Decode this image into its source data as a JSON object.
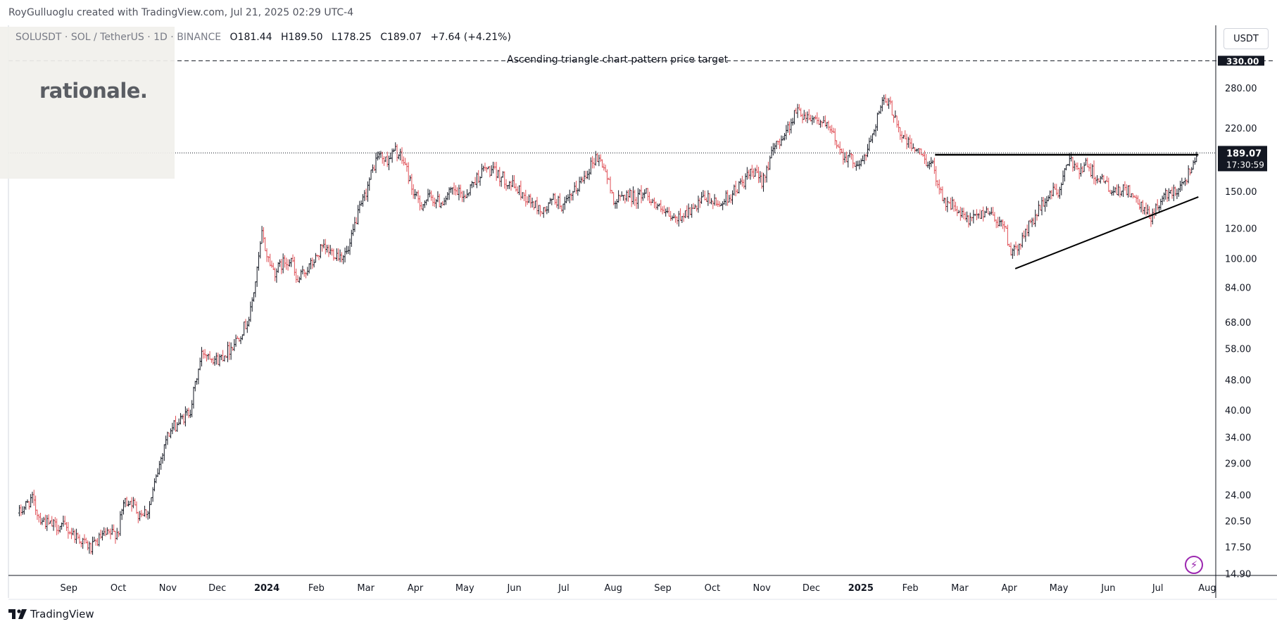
{
  "header": {
    "attribution": "RoyGulluoglu created with TradingView.com, Jul 21, 2025 02:29 UTC-4",
    "symbol": "SOLUSDT · SOL / TetherUS · 1D · BINANCE",
    "open": "O181.44",
    "high": "H189.50",
    "low": "L178.25",
    "close": "C189.07",
    "change": "+7.64 (+4.21%)"
  },
  "logo": {
    "text": "rationale."
  },
  "currency_button": "USDT",
  "footer": {
    "brand": "TradingView"
  },
  "icons": {
    "alert": "lightning-icon",
    "brand": "tradingview-logo-icon"
  },
  "colors": {
    "up": "#131722",
    "down": "#e04f56",
    "last_price_bg": "#131722",
    "bolt": "#9c27b0"
  },
  "chart_data": {
    "type": "candlestick",
    "title": "SOLUSDT · SOL / TetherUS · 1D · BINANCE",
    "scale": "log",
    "ylim": [
      13.5,
      360
    ],
    "y_ticks": [
      {
        "value": 280,
        "label": "280.00"
      },
      {
        "value": 220,
        "label": "220.00"
      },
      {
        "value": 150,
        "label": "150.00"
      },
      {
        "value": 120,
        "label": "120.00"
      },
      {
        "value": 100,
        "label": "100.00"
      },
      {
        "value": 84,
        "label": "84.00"
      },
      {
        "value": 68,
        "label": "68.00"
      },
      {
        "value": 58,
        "label": "58.00"
      },
      {
        "value": 48,
        "label": "48.00"
      },
      {
        "value": 40,
        "label": "40.00"
      },
      {
        "value": 34,
        "label": "34.00"
      },
      {
        "value": 29,
        "label": "29.00"
      },
      {
        "value": 24,
        "label": "24.00"
      },
      {
        "value": 20.5,
        "label": "20.50"
      },
      {
        "value": 17.5,
        "label": "17.50"
      },
      {
        "value": 14.9,
        "label": "14.90"
      }
    ],
    "x_ticks": [
      {
        "t": 0.5,
        "label": "Sep",
        "year": false
      },
      {
        "t": 1.5,
        "label": "Oct",
        "year": false
      },
      {
        "t": 2.5,
        "label": "Nov",
        "year": false
      },
      {
        "t": 3.5,
        "label": "Dec",
        "year": false
      },
      {
        "t": 4.5,
        "label": "2024",
        "year": true
      },
      {
        "t": 5.5,
        "label": "Feb",
        "year": false
      },
      {
        "t": 6.5,
        "label": "Mar",
        "year": false
      },
      {
        "t": 7.5,
        "label": "Apr",
        "year": false
      },
      {
        "t": 8.5,
        "label": "May",
        "year": false
      },
      {
        "t": 9.5,
        "label": "Jun",
        "year": false
      },
      {
        "t": 10.5,
        "label": "Jul",
        "year": false
      },
      {
        "t": 11.5,
        "label": "Aug",
        "year": false
      },
      {
        "t": 12.5,
        "label": "Sep",
        "year": false
      },
      {
        "t": 13.5,
        "label": "Oct",
        "year": false
      },
      {
        "t": 14.5,
        "label": "Nov",
        "year": false
      },
      {
        "t": 15.5,
        "label": "Dec",
        "year": false
      },
      {
        "t": 16.5,
        "label": "2025",
        "year": true
      },
      {
        "t": 17.5,
        "label": "Feb",
        "year": false
      },
      {
        "t": 18.5,
        "label": "Mar",
        "year": false
      },
      {
        "t": 19.5,
        "label": "Apr",
        "year": false
      },
      {
        "t": 20.5,
        "label": "May",
        "year": false
      },
      {
        "t": 21.5,
        "label": "Jun",
        "year": false
      },
      {
        "t": 22.5,
        "label": "Jul",
        "year": false
      },
      {
        "t": 23.5,
        "label": "Aug",
        "year": false
      }
    ],
    "last_price": {
      "value": 189.07,
      "label": "189.07",
      "countdown": "17:30:59"
    },
    "target": {
      "value": 330,
      "label": "330.00",
      "annotation": "Ascending triangle chart pattern price target"
    },
    "resistance": {
      "t_start": 18.0,
      "t_end": 23.32,
      "value": 187
    },
    "support": {
      "t_start": 19.62,
      "v_start": 94,
      "t_end": 23.32,
      "v_end": 145
    },
    "price_path": [
      [
        -0.5,
        21.5
      ],
      [
        -0.25,
        23.5
      ],
      [
        -0.1,
        21
      ],
      [
        0.1,
        20
      ],
      [
        0.4,
        19.8
      ],
      [
        0.7,
        18.5
      ],
      [
        0.95,
        17.3
      ],
      [
        1.15,
        18.6
      ],
      [
        1.5,
        19.2
      ],
      [
        1.6,
        22.8
      ],
      [
        1.75,
        23.3
      ],
      [
        1.9,
        21.5
      ],
      [
        2.1,
        21.8
      ],
      [
        2.25,
        26
      ],
      [
        2.45,
        33.5
      ],
      [
        2.6,
        36
      ],
      [
        2.8,
        38
      ],
      [
        2.95,
        40
      ],
      [
        3.1,
        50
      ],
      [
        3.2,
        57
      ],
      [
        3.35,
        56
      ],
      [
        3.5,
        54
      ],
      [
        3.75,
        58
      ],
      [
        3.95,
        63
      ],
      [
        4.15,
        70
      ],
      [
        4.3,
        92
      ],
      [
        4.4,
        116
      ],
      [
        4.5,
        102
      ],
      [
        4.65,
        92
      ],
      [
        4.85,
        98
      ],
      [
        5.0,
        100
      ],
      [
        5.1,
        86
      ],
      [
        5.25,
        92
      ],
      [
        5.45,
        98
      ],
      [
        5.6,
        106
      ],
      [
        5.8,
        104
      ],
      [
        6.0,
        102
      ],
      [
        6.15,
        104
      ],
      [
        6.3,
        126
      ],
      [
        6.45,
        142
      ],
      [
        6.6,
        165
      ],
      [
        6.75,
        188
      ],
      [
        6.9,
        180
      ],
      [
        7.1,
        192
      ],
      [
        7.3,
        176
      ],
      [
        7.45,
        150
      ],
      [
        7.6,
        138
      ],
      [
        7.8,
        145
      ],
      [
        8.0,
        140
      ],
      [
        8.25,
        150
      ],
      [
        8.5,
        146
      ],
      [
        8.7,
        160
      ],
      [
        8.9,
        172
      ],
      [
        9.1,
        168
      ],
      [
        9.35,
        160
      ],
      [
        9.6,
        150
      ],
      [
        9.85,
        140
      ],
      [
        10.1,
        132
      ],
      [
        10.3,
        144
      ],
      [
        10.5,
        136
      ],
      [
        10.75,
        152
      ],
      [
        10.95,
        168
      ],
      [
        11.15,
        185
      ],
      [
        11.3,
        176
      ],
      [
        11.45,
        150
      ],
      [
        11.55,
        140
      ],
      [
        11.75,
        148
      ],
      [
        11.95,
        144
      ],
      [
        12.15,
        150
      ],
      [
        12.35,
        138
      ],
      [
        12.55,
        130
      ],
      [
        12.75,
        126
      ],
      [
        12.95,
        132
      ],
      [
        13.15,
        134
      ],
      [
        13.35,
        145
      ],
      [
        13.6,
        138
      ],
      [
        13.85,
        146
      ],
      [
        14.05,
        155
      ],
      [
        14.3,
        168
      ],
      [
        14.5,
        160
      ],
      [
        14.65,
        180
      ],
      [
        14.8,
        200
      ],
      [
        15.0,
        216
      ],
      [
        15.2,
        245
      ],
      [
        15.35,
        238
      ],
      [
        15.55,
        235
      ],
      [
        15.75,
        225
      ],
      [
        15.95,
        210
      ],
      [
        16.1,
        190
      ],
      [
        16.3,
        182
      ],
      [
        16.5,
        176
      ],
      [
        16.65,
        195
      ],
      [
        16.85,
        240
      ],
      [
        16.95,
        258
      ],
      [
        17.1,
        250
      ],
      [
        17.2,
        236
      ],
      [
        17.3,
        212
      ],
      [
        17.45,
        200
      ],
      [
        17.6,
        194
      ],
      [
        17.8,
        182
      ],
      [
        17.95,
        175
      ],
      [
        18.05,
        160
      ],
      [
        18.2,
        140
      ],
      [
        18.35,
        138
      ],
      [
        18.5,
        130
      ],
      [
        18.7,
        125
      ],
      [
        18.9,
        130
      ],
      [
        19.05,
        135
      ],
      [
        19.25,
        126
      ],
      [
        19.4,
        122
      ],
      [
        19.55,
        102
      ],
      [
        19.65,
        106
      ],
      [
        19.8,
        115
      ],
      [
        19.95,
        125
      ],
      [
        20.15,
        137
      ],
      [
        20.35,
        150
      ],
      [
        20.5,
        148
      ],
      [
        20.6,
        168
      ],
      [
        20.75,
        180
      ],
      [
        20.9,
        172
      ],
      [
        21.05,
        176
      ],
      [
        21.2,
        168
      ],
      [
        21.35,
        160
      ],
      [
        21.5,
        155
      ],
      [
        21.6,
        147
      ],
      [
        21.75,
        150
      ],
      [
        21.9,
        152
      ],
      [
        22.05,
        140
      ],
      [
        22.2,
        135
      ],
      [
        22.35,
        128
      ],
      [
        22.5,
        138
      ],
      [
        22.65,
        146
      ],
      [
        22.8,
        150
      ],
      [
        22.95,
        155
      ],
      [
        23.1,
        165
      ],
      [
        23.22,
        180
      ],
      [
        23.3,
        189
      ]
    ]
  }
}
